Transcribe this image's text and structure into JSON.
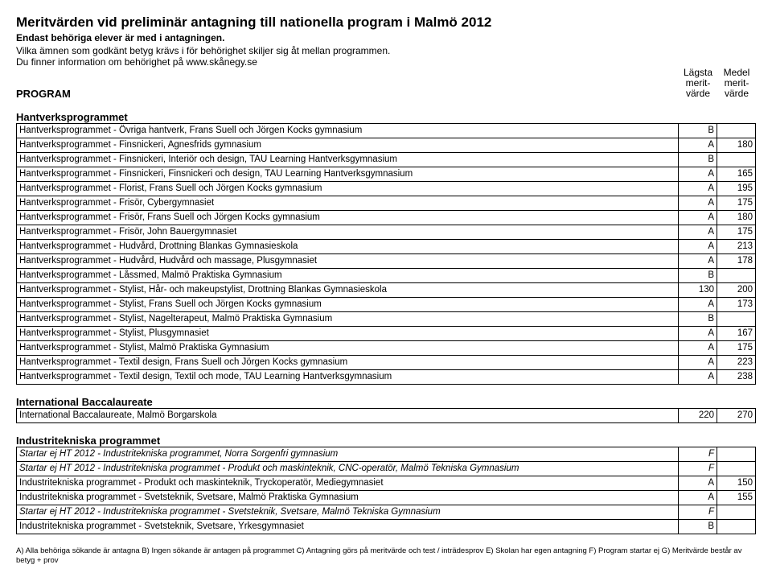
{
  "header": {
    "title": "Meritvärden vid preliminär antagning till nationella program i Malmö 2012",
    "subtitle": "Endast behöriga elever är med i antagningen.",
    "info1": "Vilka ämnen som godkänt betyg krävs i för behörighet skiljer sig åt mellan programmen.",
    "info2": "Du finner information om behörighet på www.skånegy.se",
    "program_label": "PROGRAM",
    "col1_l1": "Lägsta",
    "col1_l2": "merit-",
    "col1_l3": "värde",
    "col2_l1": "Medel",
    "col2_l2": "merit-",
    "col2_l3": "värde"
  },
  "sections": [
    {
      "title": "Hantverksprogrammet",
      "rows": [
        {
          "desc": "Hantverksprogrammet - Övriga hantverk, Frans Suell och Jörgen Kocks gymnasium",
          "v1": "B",
          "v2": ""
        },
        {
          "desc": "Hantverksprogrammet - Finsnickeri, Agnesfrids gymnasium",
          "v1": "A",
          "v2": "180"
        },
        {
          "desc": "Hantverksprogrammet - Finsnickeri, Interiör och design, TAU Learning Hantverksgymnasium",
          "v1": "B",
          "v2": ""
        },
        {
          "desc": "Hantverksprogrammet - Finsnickeri, Finsnickeri och design, TAU Learning Hantverksgymnasium",
          "v1": "A",
          "v2": "165"
        },
        {
          "desc": "Hantverksprogrammet - Florist, Frans Suell och Jörgen Kocks gymnasium",
          "v1": "A",
          "v2": "195"
        },
        {
          "desc": "Hantverksprogrammet - Frisör, Cybergymnasiet",
          "v1": "A",
          "v2": "175"
        },
        {
          "desc": "Hantverksprogrammet - Frisör, Frans Suell och Jörgen Kocks gymnasium",
          "v1": "A",
          "v2": "180"
        },
        {
          "desc": "Hantverksprogrammet - Frisör, John Bauergymnasiet",
          "v1": "A",
          "v2": "175"
        },
        {
          "desc": "Hantverksprogrammet - Hudvård, Drottning Blankas Gymnasieskola",
          "v1": "A",
          "v2": "213"
        },
        {
          "desc": "Hantverksprogrammet - Hudvård, Hudvård och massage, Plusgymnasiet",
          "v1": "A",
          "v2": "178"
        },
        {
          "desc": "Hantverksprogrammet - Låssmed, Malmö Praktiska Gymnasium",
          "v1": "B",
          "v2": ""
        },
        {
          "desc": "Hantverksprogrammet - Stylist, Hår- och makeupstylist, Drottning Blankas Gymnasieskola",
          "v1": "130",
          "v2": "200"
        },
        {
          "desc": "Hantverksprogrammet - Stylist, Frans Suell och Jörgen Kocks gymnasium",
          "v1": "A",
          "v2": "173"
        },
        {
          "desc": "Hantverksprogrammet - Stylist, Nagelterapeut, Malmö Praktiska Gymnasium",
          "v1": "B",
          "v2": ""
        },
        {
          "desc": "Hantverksprogrammet - Stylist, Plusgymnasiet",
          "v1": "A",
          "v2": "167"
        },
        {
          "desc": "Hantverksprogrammet - Stylist, Malmö Praktiska Gymnasium",
          "v1": "A",
          "v2": "175"
        },
        {
          "desc": "Hantverksprogrammet - Textil design, Frans Suell och Jörgen Kocks gymnasium",
          "v1": "A",
          "v2": "223"
        },
        {
          "desc": "Hantverksprogrammet - Textil design, Textil och mode, TAU Learning Hantverksgymnasium",
          "v1": "A",
          "v2": "238"
        }
      ]
    },
    {
      "title": "International Baccalaureate",
      "rows": [
        {
          "desc": "International Baccalaureate, Malmö Borgarskola",
          "v1": "220",
          "v2": "270"
        }
      ]
    },
    {
      "title": "Industritekniska programmet",
      "rows": [
        {
          "desc": "Startar ej HT 2012 - Industritekniska programmet, Norra Sorgenfri gymnasium",
          "v1": "F",
          "v2": "",
          "italic": true
        },
        {
          "desc": "Startar ej HT 2012 - Industritekniska programmet - Produkt och maskinteknik, CNC-operatör, Malmö Tekniska Gymnasium",
          "v1": "F",
          "v2": "",
          "italic": true
        },
        {
          "desc": "Industritekniska programmet - Produkt och maskinteknik, Tryckoperatör, Mediegymnasiet",
          "v1": "A",
          "v2": "150"
        },
        {
          "desc": "Industritekniska programmet - Svetsteknik, Svetsare, Malmö Praktiska Gymnasium",
          "v1": "A",
          "v2": "155"
        },
        {
          "desc": "Startar ej HT 2012 - Industritekniska programmet - Svetsteknik, Svetsare, Malmö Tekniska Gymnasium",
          "v1": "F",
          "v2": "",
          "italic": true
        },
        {
          "desc": "Industritekniska programmet - Svetsteknik, Svetsare, Yrkesgymnasiet",
          "v1": "B",
          "v2": ""
        }
      ]
    }
  ],
  "footer": "A) Alla behöriga sökande är antagna  B) Ingen sökande är antagen på programmet  C) Antagning görs på meritvärde och test / inträdesprov E) Skolan har egen antagning  F) Program startar ej  G) Meritvärde består av betyg + prov"
}
